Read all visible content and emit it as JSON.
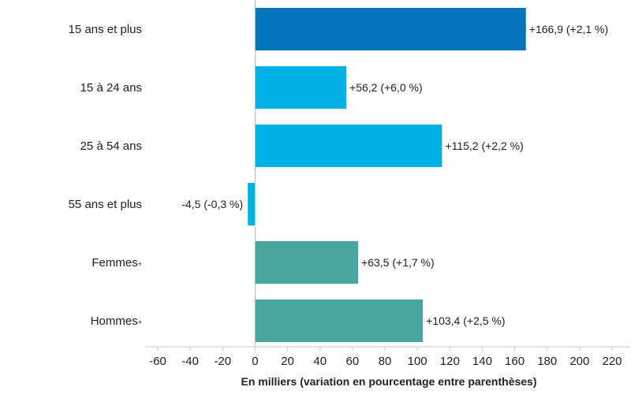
{
  "chart_data": {
    "type": "bar",
    "orientation": "horizontal",
    "title": "",
    "xlabel": "En milliers (variation en pourcentage entre parenthèses)",
    "ylabel": "",
    "xlim": [
      -60,
      220
    ],
    "xticks": [
      -60,
      -40,
      -20,
      0,
      20,
      40,
      60,
      80,
      100,
      120,
      140,
      160,
      180,
      200,
      220
    ],
    "grid": false,
    "legend": "none",
    "categories": [
      {
        "label": "15 ans et plus",
        "sup": "",
        "value": 166.9,
        "data_label": "+166,9 (+2,1 %)",
        "color": "#0573bd"
      },
      {
        "label": "15 à 24 ans",
        "sup": "",
        "value": 56.2,
        "data_label": "+56,2 (+6,0 %)",
        "color": "#00b0e4"
      },
      {
        "label": "25 à 54 ans",
        "sup": "",
        "value": 115.2,
        "data_label": "+115,2 (+2,2 %)",
        "color": "#00b0e4"
      },
      {
        "label": "55 ans et plus",
        "sup": "",
        "value": -4.5,
        "data_label": "-4,5 (-0,3 %)",
        "color": "#00b0e4"
      },
      {
        "label": "Femmes",
        "sup": "+",
        "value": 63.5,
        "data_label": "+63,5 (+1,7 %)",
        "color": "#49a7a0"
      },
      {
        "label": "Hommes",
        "sup": "+",
        "value": 103.4,
        "data_label": "+103,4 (+2,5 %)",
        "color": "#49a7a0"
      }
    ]
  }
}
